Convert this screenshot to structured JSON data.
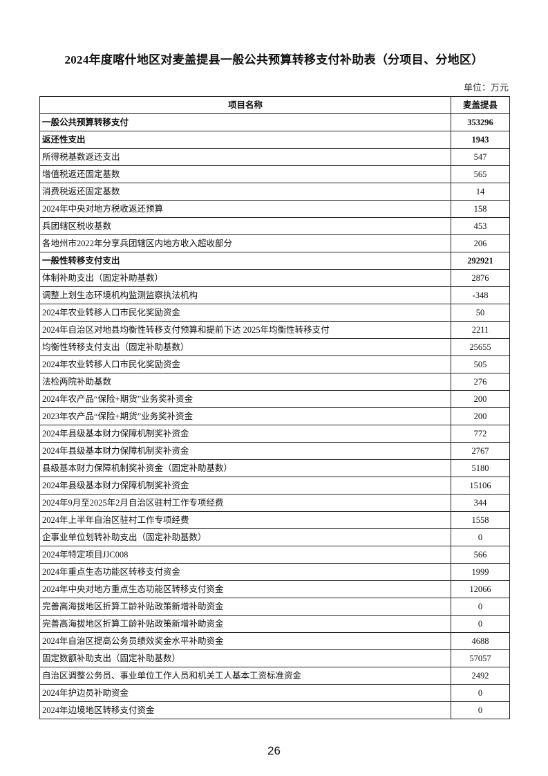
{
  "title": "2024年度喀什地区对麦盖提县一般公共预算转移支付补助表（分项目、分地区）",
  "unit": "单位：万元",
  "table": {
    "headers": [
      "项目名称",
      "麦盖提县"
    ],
    "rows": [
      {
        "name": "一般公共预算转移支付",
        "value": "353296",
        "bold": true
      },
      {
        "name": "返还性支出",
        "value": "1943",
        "bold": true
      },
      {
        "name": "所得税基数返还支出",
        "value": "547"
      },
      {
        "name": "增值税返还固定基数",
        "value": "565"
      },
      {
        "name": "消费税返还固定基数",
        "value": "14"
      },
      {
        "name": "2024年中央对地方税收返还预算",
        "value": "158"
      },
      {
        "name": "兵团辖区税收基数",
        "value": "453"
      },
      {
        "name": "各地州市2022年分享兵团辖区内地方收入超收部分",
        "value": "206"
      },
      {
        "name": "一般性转移支付支出",
        "value": "292921",
        "bold": true
      },
      {
        "name": "体制补助支出（固定补助基数）",
        "value": "2876"
      },
      {
        "name": "调整上划生态环境机构监测监察执法机构",
        "value": "-348"
      },
      {
        "name": "2024年农业转移人口市民化奖励资金",
        "value": "50"
      },
      {
        "name": "2024年自治区对地县均衡性转移支付预算和提前下达 2025年均衡性转移支付",
        "value": "2211"
      },
      {
        "name": "均衡性转移支付支出（固定补助基数）",
        "value": "25655"
      },
      {
        "name": "2024年农业转移人口市民化奖励资金",
        "value": "505"
      },
      {
        "name": "法检两院补助基数",
        "value": "276"
      },
      {
        "name": "2024年农产品“保险+期货”业务奖补资金",
        "value": "200"
      },
      {
        "name": "2023年农产品“保险+期货”业务奖补资金",
        "value": "200"
      },
      {
        "name": "2024年县级基本财力保障机制奖补资金",
        "value": "772"
      },
      {
        "name": "2024年县级基本财力保障机制奖补资金",
        "value": "2767"
      },
      {
        "name": "县级基本财力保障机制奖补资金（固定补助基数）",
        "value": "5180"
      },
      {
        "name": "2024年县级基本财力保障机制奖补资金",
        "value": "15106"
      },
      {
        "name": "2024年9月至2025年2月自治区驻村工作专项经费",
        "value": "344"
      },
      {
        "name": "2024年上半年自治区驻村工作专项经费",
        "value": "1558"
      },
      {
        "name": "企事业单位划转补助支出（固定补助基数）",
        "value": "0"
      },
      {
        "name": "2024年特定项目JJC008",
        "value": "566"
      },
      {
        "name": "2024年重点生态功能区转移支付资金",
        "value": "1999"
      },
      {
        "name": "2024年中央对地方重点生态功能区转移支付资金",
        "value": "12066"
      },
      {
        "name": "完善高海拔地区折算工龄补贴政策新增补助资金",
        "value": "0"
      },
      {
        "name": "完善高海拔地区折算工龄补贴政策新增补助资金",
        "value": "0"
      },
      {
        "name": "2024年自治区提高公务员绩效奖金水平补助资金",
        "value": "4688"
      },
      {
        "name": "固定数额补助支出（固定补助基数）",
        "value": "57057"
      },
      {
        "name": "自治区调整公务员、事业单位工作人员和机关工人基本工资标准资金",
        "value": "2492"
      },
      {
        "name": "2024年护边员补助资金",
        "value": "0"
      },
      {
        "name": "2024年边境地区转移支付资金",
        "value": "0"
      }
    ]
  },
  "page_number": "26"
}
